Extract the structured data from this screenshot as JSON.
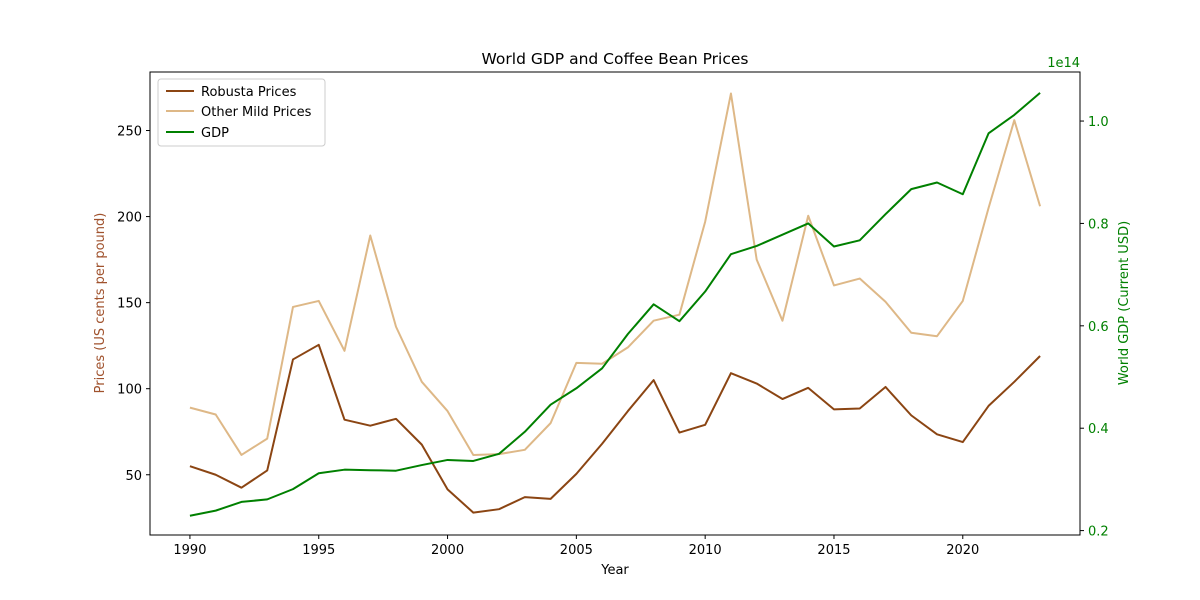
{
  "chart_data": {
    "type": "line",
    "title": "World GDP and Coffee Bean Prices",
    "xlabel": "Year",
    "ylabel_left": "Prices (US cents per pound)",
    "ylabel_right": "World GDP (Current USD)",
    "right_axis_offset_text": "1e14",
    "xlim": [
      1988.45,
      2024.55
    ],
    "ylim_left": [
      15,
      284
    ],
    "ylim_right": [
      0.1914,
      1.0958
    ],
    "x_ticks": [
      1990,
      1995,
      2000,
      2005,
      2010,
      2015,
      2020
    ],
    "y_ticks_left": [
      50,
      100,
      150,
      200,
      250
    ],
    "y_ticks_right": [
      0.2,
      0.4,
      0.6,
      0.8,
      1.0
    ],
    "y_tick_labels_right": [
      "0.2",
      "0.4",
      "0.6",
      "0.8",
      "1.0"
    ],
    "legend_position": "upper-left",
    "colors": {
      "robusta": "#8B4513",
      "other_mild": "#DEB887",
      "gdp": "#008000",
      "left_axis_label": "#A0522D"
    },
    "x": [
      1990,
      1991,
      1992,
      1993,
      1994,
      1995,
      1996,
      1997,
      1998,
      1999,
      2000,
      2001,
      2002,
      2003,
      2004,
      2005,
      2006,
      2007,
      2008,
      2009,
      2010,
      2011,
      2012,
      2013,
      2014,
      2015,
      2016,
      2017,
      2018,
      2019,
      2020,
      2021,
      2022,
      2023
    ],
    "series": [
      {
        "name": "Robusta Prices",
        "axis": "left",
        "values": [
          55,
          50,
          42.5,
          52.5,
          117,
          125.5,
          82,
          78.5,
          82.5,
          67.5,
          41.5,
          28,
          30,
          37,
          36,
          50.5,
          68,
          87,
          105,
          74.5,
          79,
          109,
          103,
          94,
          100.5,
          88,
          88.5,
          101,
          84.5,
          73.5,
          69,
          90,
          104,
          119
        ]
      },
      {
        "name": "Other Mild Prices",
        "axis": "left",
        "values": [
          89,
          85,
          61.5,
          71,
          147.5,
          151,
          122,
          189,
          136,
          104,
          87,
          61.5,
          62,
          64.5,
          80,
          115,
          114.5,
          124,
          139.5,
          143,
          197,
          271.5,
          175,
          139.5,
          200.5,
          160,
          164,
          150.5,
          132.5,
          130.5,
          151,
          205,
          256,
          206
        ]
      },
      {
        "name": "GDP",
        "axis": "right",
        "values": [
          0.229,
          0.239,
          0.256,
          0.261,
          0.281,
          0.312,
          0.319,
          0.318,
          0.317,
          0.328,
          0.338,
          0.336,
          0.35,
          0.393,
          0.446,
          0.478,
          0.517,
          0.584,
          0.642,
          0.609,
          0.667,
          0.74,
          0.756,
          0.778,
          0.8,
          0.755,
          0.767,
          0.818,
          0.867,
          0.88,
          0.857,
          0.976,
          1.012,
          1.055
        ]
      }
    ]
  }
}
